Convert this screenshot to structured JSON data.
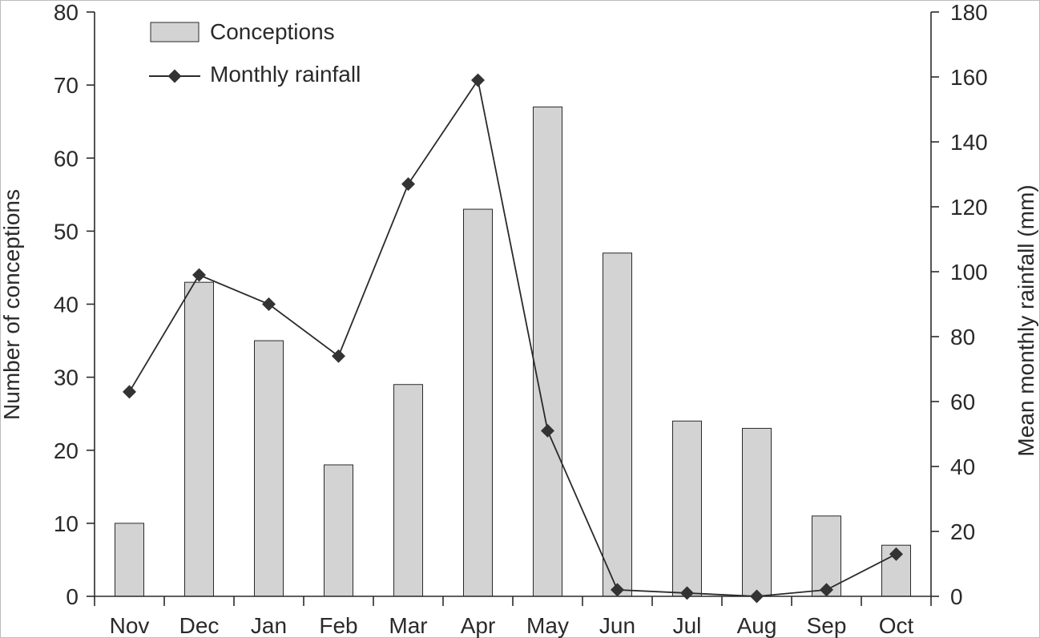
{
  "chart_data": {
    "type": "bar",
    "categories": [
      "Nov",
      "Dec",
      "Jan",
      "Feb",
      "Mar",
      "Apr",
      "May",
      "Jun",
      "Jul",
      "Aug",
      "Sep",
      "Oct"
    ],
    "series": [
      {
        "name": "Conceptions",
        "type": "bar",
        "axis": "left",
        "values": [
          10,
          43,
          35,
          18,
          29,
          53,
          67,
          47,
          24,
          23,
          11,
          7
        ],
        "color": "#d3d3d3"
      },
      {
        "name": "Monthly rainfall",
        "type": "line",
        "axis": "right",
        "values": [
          63,
          99,
          90,
          74,
          127,
          159,
          51,
          2,
          1,
          0,
          2,
          13
        ],
        "color": "#2a2a2a"
      }
    ],
    "ylabel": "Number of conceptions",
    "y2label": "Mean monthly rainfall (mm)",
    "ylim": [
      0,
      80
    ],
    "y2lim": [
      0,
      180
    ],
    "yticks": [
      "0",
      "10",
      "20",
      "30",
      "40",
      "50",
      "60",
      "70",
      "80"
    ],
    "y2ticks": [
      "0",
      "20",
      "40",
      "60",
      "80",
      "100",
      "120",
      "140",
      "160",
      "180"
    ],
    "legend": {
      "placement": "top-left",
      "items": [
        "Conceptions",
        "Monthly rainfall"
      ]
    },
    "grid": false
  }
}
